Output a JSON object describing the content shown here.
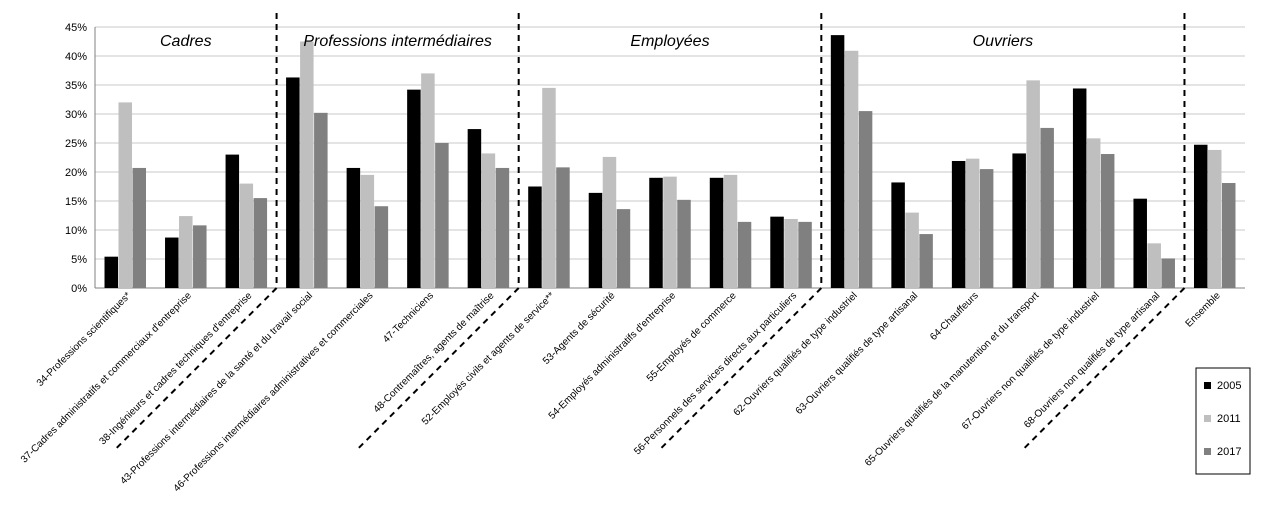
{
  "chart_data": {
    "type": "bar",
    "ylim": [
      0,
      45
    ],
    "yticks": [
      "0%",
      "5%",
      "10%",
      "15%",
      "20%",
      "25%",
      "30%",
      "35%",
      "40%",
      "45%"
    ],
    "categories": [
      "34-Professions scientifiques*",
      "37-Cadres administratifs et commerciaux d'entreprise",
      "38-Ingénieurs et cadres techniques d'entreprise",
      "43-Professions intermédiaires de la santé et  du travail social",
      "46-Professions intermédiaires administratives et commerciales",
      "47-Techniciens",
      "48-Contremaîtres, agents de maîtrise",
      "52-Employés civils et agents de service**",
      "53-Agents de sécurité",
      "54-Employés administratifs d'entreprise",
      "55-Employés de commerce",
      "56-Personnels des services directs aux particuliers",
      "62-Ouvriers qualifiés de type industriel",
      "63-Ouvriers qualifiés de type artisanal",
      "64-Chauffeurs",
      "65-Ouvriers qualifiés de la manutention et du transport",
      "67-Ouvriers non qualifiés de type industriel",
      "68-Ouvriers non qualifiés de type artisanal",
      "Ensemble"
    ],
    "series": [
      {
        "name": "2005",
        "color": "#000000",
        "values": [
          5.4,
          8.7,
          23.0,
          36.3,
          20.7,
          34.2,
          27.4,
          17.5,
          16.4,
          19.0,
          19.0,
          12.3,
          43.6,
          18.2,
          21.9,
          23.2,
          34.4,
          15.4,
          24.7
        ]
      },
      {
        "name": "2011",
        "color": "#bfbfbf",
        "values": [
          32.0,
          12.4,
          18.0,
          42.5,
          19.5,
          37.0,
          23.2,
          34.5,
          22.6,
          19.2,
          19.5,
          11.9,
          40.9,
          13.0,
          22.3,
          35.8,
          25.8,
          7.7,
          23.8
        ]
      },
      {
        "name": "2017",
        "color": "#808080",
        "values": [
          20.7,
          10.8,
          15.5,
          30.2,
          14.1,
          25.0,
          20.7,
          20.8,
          13.6,
          15.2,
          11.4,
          11.4,
          30.5,
          9.3,
          20.5,
          27.6,
          23.1,
          5.1,
          18.1
        ]
      }
    ],
    "groups": [
      "Cadres",
      "Professions intermédiaires",
      "Employées",
      "Ouvriers"
    ],
    "legend_position": "bottom-right",
    "grid": true
  }
}
